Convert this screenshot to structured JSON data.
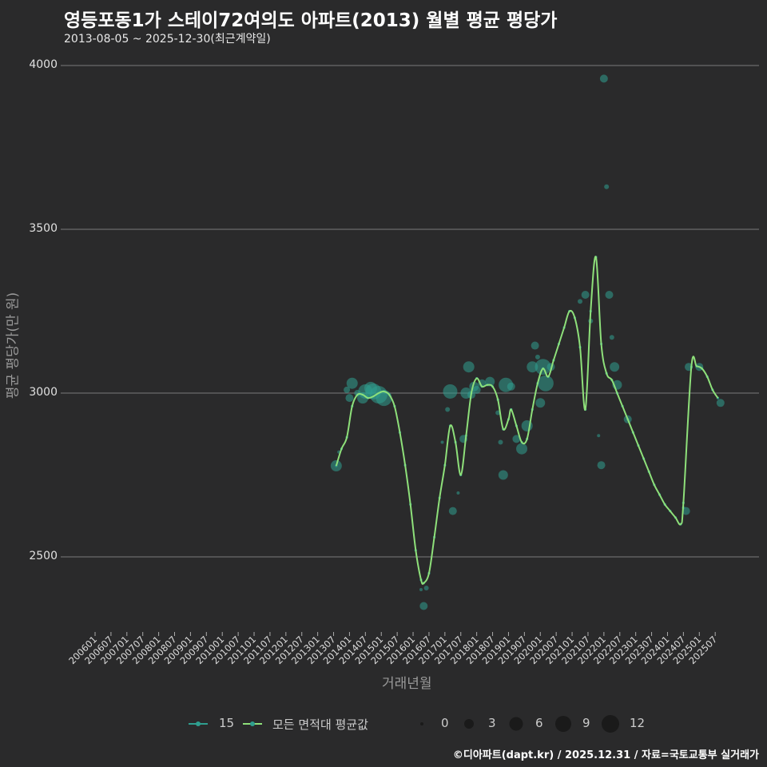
{
  "header": {
    "title": "영등포동1가 스테이72여의도 아파트(2013) 월별 평균 평당가",
    "subtitle": "2013-08-05 ~ 2025-12-30(최근계약일)"
  },
  "footer": {
    "credit": "©디아파트(dapt.kr) / 2025.12.31 / 자료=국토교통부 실거래가"
  },
  "colors": {
    "background": "#2a2a2b",
    "grid": "#6b6b6b",
    "series_15": "#2f9e8f",
    "avg_line": "#8ee07a",
    "text": "#e0e0e0",
    "axis_title": "#999999"
  },
  "chart_data": {
    "type": "line",
    "title": "영등포동1가 스테이72여의도 아파트(2013) 월별 평균 평당가",
    "subtitle": "2013-08-05 ~ 2025-12-30(최근계약일)",
    "xlabel": "거래년월",
    "ylabel": "평균 평당가(만 원)",
    "ylim": [
      2270,
      4060
    ],
    "yticks": [
      2500,
      3000,
      3500,
      4000
    ],
    "xticks": [
      "200601",
      "200607",
      "200701",
      "200707",
      "200801",
      "200807",
      "200901",
      "200907",
      "201001",
      "201007",
      "201101",
      "201107",
      "201201",
      "201207",
      "201301",
      "201307",
      "201401",
      "201407",
      "201501",
      "201507",
      "201601",
      "201607",
      "201701",
      "201707",
      "201801",
      "201807",
      "201901",
      "201907",
      "202001",
      "202007",
      "202101",
      "202107",
      "202201",
      "202207",
      "202301",
      "202307",
      "202401",
      "202407",
      "202501",
      "202507"
    ],
    "grid": true,
    "legend": {
      "position": "bottom",
      "series": [
        {
          "name": "15",
          "color": "#2f9e8f"
        },
        {
          "name": "모든 면적대 평균값",
          "color": "#8ee07a"
        }
      ],
      "size_title": "",
      "sizes": [
        {
          "label": "0",
          "r": 2
        },
        {
          "label": "3",
          "r": 6
        },
        {
          "label": "6",
          "r": 8.5
        },
        {
          "label": "9",
          "r": 10
        },
        {
          "label": "12",
          "r": 11
        }
      ]
    },
    "series": [
      {
        "name": "모든 면적대 평균값",
        "type": "line",
        "points": [
          [
            "201308",
            2778
          ],
          [
            "201310",
            2830
          ],
          [
            "201312",
            2865
          ],
          [
            "201402",
            2960
          ],
          [
            "201404",
            2995
          ],
          [
            "201406",
            2995
          ],
          [
            "201408",
            2985
          ],
          [
            "201410",
            2990
          ],
          [
            "201412",
            3000
          ],
          [
            "201502",
            3005
          ],
          [
            "201504",
            2995
          ],
          [
            "201506",
            2960
          ],
          [
            "201508",
            2880
          ],
          [
            "201510",
            2780
          ],
          [
            "201512",
            2660
          ],
          [
            "201602",
            2520
          ],
          [
            "201604",
            2430
          ],
          [
            "201605",
            2420
          ],
          [
            "201607",
            2450
          ],
          [
            "201609",
            2560
          ],
          [
            "201611",
            2680
          ],
          [
            "201701",
            2780
          ],
          [
            "201703",
            2900
          ],
          [
            "201705",
            2850
          ],
          [
            "201707",
            2750
          ],
          [
            "201709",
            2870
          ],
          [
            "201711",
            3000
          ],
          [
            "201801",
            3045
          ],
          [
            "201803",
            3020
          ],
          [
            "201805",
            3025
          ],
          [
            "201807",
            3020
          ],
          [
            "201809",
            2980
          ],
          [
            "201811",
            2890
          ],
          [
            "201901",
            2920
          ],
          [
            "201902",
            2950
          ],
          [
            "201904",
            2900
          ],
          [
            "201906",
            2850
          ],
          [
            "201908",
            2860
          ],
          [
            "201910",
            2950
          ],
          [
            "201912",
            3030
          ],
          [
            "202002",
            3075
          ],
          [
            "202004",
            3050
          ],
          [
            "202006",
            3100
          ],
          [
            "202008",
            3150
          ],
          [
            "202010",
            3200
          ],
          [
            "202012",
            3250
          ],
          [
            "202102",
            3230
          ],
          [
            "202104",
            3140
          ],
          [
            "202106",
            2950
          ],
          [
            "202108",
            3250
          ],
          [
            "202110",
            3415
          ],
          [
            "202112",
            3150
          ],
          [
            "202202",
            3060
          ],
          [
            "202204",
            3040
          ],
          [
            "202206",
            3000
          ],
          [
            "202208",
            2960
          ],
          [
            "202210",
            2920
          ],
          [
            "202212",
            2880
          ],
          [
            "202302",
            2840
          ],
          [
            "202304",
            2800
          ],
          [
            "202306",
            2760
          ],
          [
            "202308",
            2720
          ],
          [
            "202310",
            2690
          ],
          [
            "202312",
            2660
          ],
          [
            "202402",
            2640
          ],
          [
            "202404",
            2620
          ],
          [
            "202406",
            2600
          ],
          [
            "202407",
            2665
          ],
          [
            "202410",
            3080
          ],
          [
            "202412",
            3082
          ],
          [
            "202502",
            3075
          ],
          [
            "202504",
            3050
          ],
          [
            "202506",
            3010
          ],
          [
            "202508",
            2985
          ]
        ]
      },
      {
        "name": "15",
        "type": "scatter",
        "points": [
          [
            "201308",
            2778,
            7
          ],
          [
            "201309",
            2820,
            2
          ],
          [
            "201312",
            3010,
            4
          ],
          [
            "201401",
            2985,
            5
          ],
          [
            "201402",
            3030,
            7
          ],
          [
            "201404",
            3000,
            4
          ],
          [
            "201406",
            2985,
            7
          ],
          [
            "201407",
            3005,
            9
          ],
          [
            "201409",
            3015,
            8
          ],
          [
            "201410",
            3005,
            10
          ],
          [
            "201412",
            2995,
            11
          ],
          [
            "201502",
            2985,
            10
          ],
          [
            "201604",
            2400,
            2
          ],
          [
            "201605",
            2350,
            5
          ],
          [
            "201606",
            2405,
            3
          ],
          [
            "201612",
            2850,
            2
          ],
          [
            "201702",
            2950,
            3
          ],
          [
            "201703",
            3005,
            9
          ],
          [
            "201704",
            2640,
            5
          ],
          [
            "201706",
            2695,
            2
          ],
          [
            "201708",
            2860,
            5
          ],
          [
            "201709",
            3000,
            7
          ],
          [
            "201710",
            3080,
            7
          ],
          [
            "201711",
            2995,
            5
          ],
          [
            "201712",
            3020,
            6
          ],
          [
            "201801",
            3010,
            5
          ],
          [
            "201803",
            3030,
            5
          ],
          [
            "201806",
            3035,
            6
          ],
          [
            "201809",
            2940,
            3
          ],
          [
            "201810",
            2850,
            3
          ],
          [
            "201811",
            2750,
            6
          ],
          [
            "201812",
            3025,
            9
          ],
          [
            "201902",
            3020,
            5
          ],
          [
            "201904",
            2860,
            5
          ],
          [
            "201906",
            2830,
            7
          ],
          [
            "201908",
            2900,
            7
          ],
          [
            "201910",
            3080,
            7
          ],
          [
            "201911",
            3145,
            5
          ],
          [
            "201912",
            3110,
            3
          ],
          [
            "202001",
            2970,
            6
          ],
          [
            "202002",
            3080,
            10
          ],
          [
            "202003",
            3030,
            10
          ],
          [
            "202005",
            3080,
            5
          ],
          [
            "202104",
            3280,
            3
          ],
          [
            "202106",
            3300,
            5
          ],
          [
            "202108",
            3220,
            3
          ],
          [
            "202111",
            2870,
            2
          ],
          [
            "202112",
            2780,
            5
          ],
          [
            "202201",
            3960,
            5
          ],
          [
            "202202",
            3630,
            3
          ],
          [
            "202203",
            3300,
            5
          ],
          [
            "202204",
            3170,
            3
          ],
          [
            "202205",
            3080,
            6
          ],
          [
            "202206",
            3025,
            6
          ],
          [
            "202210",
            2920,
            5
          ],
          [
            "202407",
            2650,
            2
          ],
          [
            "202408",
            2640,
            5
          ],
          [
            "202409",
            3080,
            5
          ],
          [
            "202501",
            3080,
            5
          ],
          [
            "202509",
            2970,
            5
          ]
        ]
      }
    ]
  }
}
